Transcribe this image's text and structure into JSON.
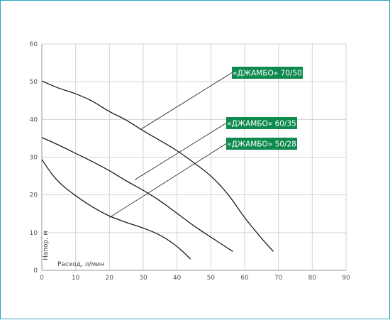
{
  "chart_data": {
    "type": "line",
    "title": "",
    "xlabel": "Расход, л/мин",
    "ylabel": "Напор, м",
    "xlim": [
      0,
      90
    ],
    "ylim": [
      0,
      60
    ],
    "xticks": [
      0,
      10,
      20,
      30,
      40,
      50,
      60,
      70,
      80,
      90
    ],
    "yticks": [
      0,
      10,
      20,
      30,
      40,
      50,
      60
    ],
    "grid": true,
    "colors": {
      "curve": "#1a1a1a",
      "grid": "#d3d3d3",
      "label_bg": "#0f8a4e",
      "frame": "#2aa7c0"
    },
    "series": [
      {
        "name": "«ДЖАМБО» 70/50",
        "x": [
          0,
          5,
          10,
          15,
          20,
          25,
          30,
          35,
          40,
          45,
          50,
          55,
          60,
          65,
          68.5
        ],
        "y": [
          50.2,
          48.3,
          46.8,
          44.8,
          42.1,
          39.8,
          37.0,
          34.4,
          31.7,
          28.5,
          25.0,
          20.2,
          14.0,
          8.5,
          5.0
        ]
      },
      {
        "name": "«ДЖАМБО» 60/35",
        "x": [
          0,
          5,
          10,
          15,
          20,
          25,
          30,
          35,
          40,
          45,
          50,
          56.5
        ],
        "y": [
          35.2,
          33.2,
          31.0,
          28.8,
          26.4,
          23.7,
          21.2,
          18.4,
          15.1,
          11.8,
          8.8,
          5.0
        ]
      },
      {
        "name": "«ДЖАМБО» 50/28",
        "x": [
          0,
          3,
          6,
          10,
          15,
          20,
          25,
          30,
          35,
          40,
          44
        ],
        "y": [
          29.4,
          25.5,
          22.6,
          19.8,
          16.8,
          14.4,
          12.7,
          11.2,
          9.3,
          6.3,
          3.0
        ]
      }
    ],
    "legend_labels": [
      {
        "text": "«ДЖАМБО» 70/50",
        "anchor_x": 29.5,
        "anchor_y": 37.5
      },
      {
        "text": "«ДЖАМБО» 60/35",
        "anchor_x": 27.5,
        "anchor_y": 24.0
      },
      {
        "text": "«ДЖАМБО» 50/28",
        "anchor_x": 20.0,
        "anchor_y": 14.0
      }
    ]
  }
}
